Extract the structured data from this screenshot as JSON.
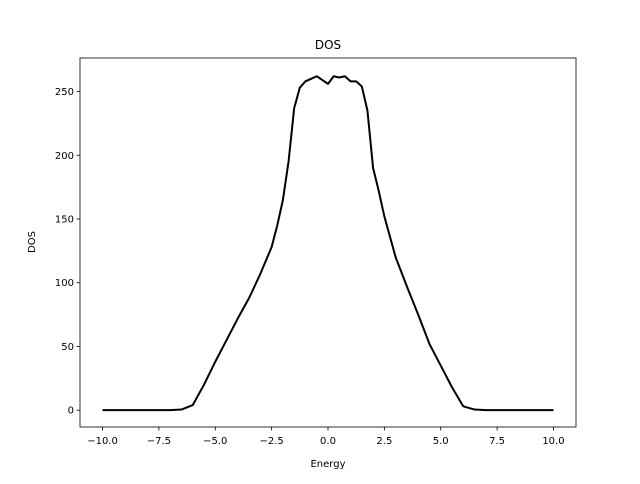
{
  "chart_data": {
    "type": "line",
    "title": "DOS",
    "x_label": "Energy",
    "y_label": "DOS",
    "x": [
      -10,
      -9,
      -8,
      -7,
      -6.5,
      -6,
      -5.5,
      -5,
      -4.5,
      -4,
      -3.5,
      -3,
      -2.5,
      -2.25,
      -2,
      -1.75,
      -1.5,
      -1.25,
      -1,
      -0.75,
      -0.5,
      -0.25,
      0,
      0.25,
      0.5,
      0.75,
      1,
      1.25,
      1.5,
      1.75,
      2,
      2.25,
      2.5,
      3,
      3.5,
      4,
      4.5,
      5,
      5.5,
      6,
      6.5,
      7,
      8,
      9,
      10
    ],
    "series": [
      {
        "name": "DOS",
        "color": "#000000",
        "values": [
          0,
          0,
          0,
          0,
          0.5,
          4,
          20,
          38,
          55,
          72,
          88,
          107,
          128,
          145,
          165,
          195,
          237,
          253,
          258,
          260,
          262,
          259,
          256,
          262,
          261,
          262,
          258,
          258,
          254,
          235,
          190,
          172,
          152,
          120,
          97,
          75,
          52,
          35,
          18,
          3,
          0.5,
          0,
          0,
          0,
          0
        ]
      }
    ],
    "xlim": [
      -11,
      11
    ],
    "ylim": [
      -13.2,
      276.3
    ],
    "xticks": [
      {
        "value": -10,
        "label": "−10.0"
      },
      {
        "value": -7.5,
        "label": "−7.5"
      },
      {
        "value": -5,
        "label": "−5.0"
      },
      {
        "value": -2.5,
        "label": "−2.5"
      },
      {
        "value": 0,
        "label": "0.0"
      },
      {
        "value": 2.5,
        "label": "2.5"
      },
      {
        "value": 5,
        "label": "5.0"
      },
      {
        "value": 7.5,
        "label": "7.5"
      },
      {
        "value": 10,
        "label": "10.0"
      }
    ],
    "yticks": [
      0,
      50,
      100,
      150,
      200,
      250
    ],
    "grid": false
  }
}
